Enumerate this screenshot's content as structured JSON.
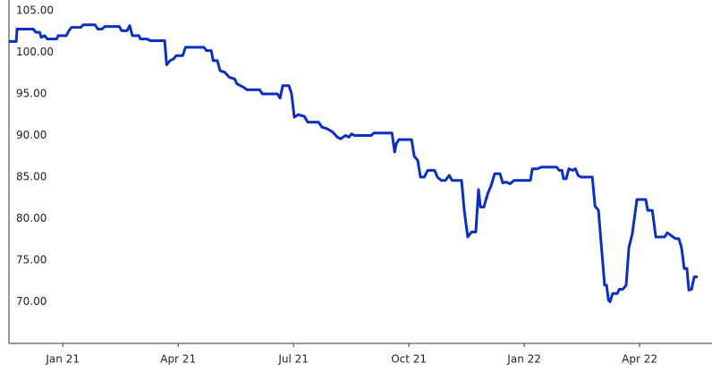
{
  "chart_data": {
    "type": "line",
    "color": "#0b2fbf",
    "grid": false,
    "xlim": [
      -1.4,
      16.51
    ],
    "ylim": [
      65,
      105
    ],
    "xticks": [
      {
        "value": 0,
        "label": "Jan 21"
      },
      {
        "value": 3,
        "label": "Apr 21"
      },
      {
        "value": 6,
        "label": "Jul 21"
      },
      {
        "value": 9,
        "label": "Oct 21"
      },
      {
        "value": 12,
        "label": "Jan 22"
      },
      {
        "value": 15,
        "label": "Apr 22"
      }
    ],
    "yticks": [
      {
        "value": 70,
        "label": "70.00"
      },
      {
        "value": 75,
        "label": "75.00"
      },
      {
        "value": 80,
        "label": "80.00"
      },
      {
        "value": 85,
        "label": "85.00"
      },
      {
        "value": 90,
        "label": "90.00"
      },
      {
        "value": 95,
        "label": "95.00"
      },
      {
        "value": 100,
        "label": "100.00"
      },
      {
        "value": 105,
        "label": "105.00"
      }
    ],
    "x": [
      -1.4,
      -1.21,
      -1.19,
      -0.77,
      -0.7,
      -0.6,
      -0.56,
      -0.47,
      -0.4,
      -0.16,
      -0.12,
      0.09,
      0.16,
      0.23,
      0.47,
      0.53,
      0.84,
      0.91,
      1.02,
      1.09,
      1.47,
      1.53,
      1.67,
      1.74,
      1.81,
      1.98,
      2.02,
      2.19,
      2.28,
      2.65,
      2.7,
      2.79,
      2.88,
      2.95,
      3.12,
      3.19,
      3.67,
      3.74,
      3.86,
      3.91,
      4.02,
      4.09,
      4.21,
      4.33,
      4.47,
      4.53,
      4.7,
      4.79,
      5.12,
      5.19,
      5.58,
      5.65,
      5.72,
      5.88,
      5.95,
      6.02,
      6.12,
      6.28,
      6.37,
      6.65,
      6.74,
      6.88,
      7.02,
      7.14,
      7.23,
      7.35,
      7.44,
      7.51,
      7.58,
      8.02,
      8.09,
      8.56,
      8.63,
      8.67,
      8.74,
      9.07,
      9.14,
      9.23,
      9.3,
      9.4,
      9.49,
      9.67,
      9.74,
      9.84,
      9.95,
      10.05,
      10.12,
      10.37,
      10.44,
      10.53,
      10.63,
      10.74,
      10.81,
      10.86,
      10.95,
      11.05,
      11.14,
      11.23,
      11.37,
      11.44,
      11.53,
      11.63,
      11.74,
      12.16,
      12.21,
      12.35,
      12.44,
      12.84,
      12.91,
      12.98,
      13.02,
      13.09,
      13.16,
      13.26,
      13.33,
      13.4,
      13.47,
      13.56,
      13.77,
      13.84,
      13.93,
      14.0,
      14.09,
      14.14,
      14.19,
      14.23,
      14.3,
      14.42,
      14.47,
      14.56,
      14.65,
      14.72,
      14.81,
      14.93,
      15.16,
      15.21,
      15.33,
      15.42,
      15.65,
      15.72,
      15.81,
      15.93,
      16.02,
      16.09,
      16.16,
      16.23,
      16.28,
      16.35,
      16.42,
      16.51
    ],
    "values": [
      101.3,
      101.3,
      102.8,
      102.8,
      102.4,
      102.4,
      101.8,
      102.0,
      101.6,
      101.6,
      102.0,
      102.0,
      102.6,
      103.0,
      103.0,
      103.3,
      103.3,
      102.8,
      102.8,
      103.1,
      103.1,
      102.6,
      102.6,
      103.2,
      102.0,
      102.0,
      101.6,
      101.6,
      101.4,
      101.4,
      98.5,
      99.0,
      99.2,
      99.6,
      99.6,
      100.6,
      100.6,
      100.2,
      100.2,
      99.0,
      99.0,
      97.8,
      97.6,
      97.0,
      96.8,
      96.2,
      95.8,
      95.5,
      95.5,
      95.0,
      95.0,
      94.5,
      96.0,
      96.0,
      95.0,
      92.2,
      92.5,
      92.3,
      91.6,
      91.6,
      91.0,
      90.8,
      90.4,
      89.8,
      89.6,
      90.0,
      89.8,
      90.2,
      90.0,
      90.0,
      90.3,
      90.3,
      88.0,
      89.0,
      89.5,
      89.5,
      87.5,
      87.0,
      85.0,
      85.0,
      85.8,
      85.8,
      85.0,
      84.6,
      84.6,
      85.2,
      84.6,
      84.6,
      81.0,
      77.8,
      78.4,
      78.4,
      83.5,
      81.4,
      81.4,
      83.0,
      84.0,
      85.4,
      85.4,
      84.3,
      84.4,
      84.2,
      84.6,
      84.6,
      86.0,
      86.0,
      86.2,
      86.2,
      85.8,
      85.8,
      84.8,
      84.8,
      86.0,
      85.8,
      86.0,
      85.2,
      85.0,
      85.0,
      85.0,
      81.5,
      81.0,
      77.0,
      72.0,
      72.0,
      70.2,
      70.0,
      71.0,
      71.0,
      71.5,
      71.5,
      72.0,
      76.5,
      78.2,
      82.3,
      82.3,
      81.0,
      81.0,
      77.8,
      77.8,
      78.3,
      78.0,
      77.6,
      77.6,
      76.5,
      74.0,
      74.0,
      71.4,
      71.5,
      73.0,
      73.0
    ]
  }
}
